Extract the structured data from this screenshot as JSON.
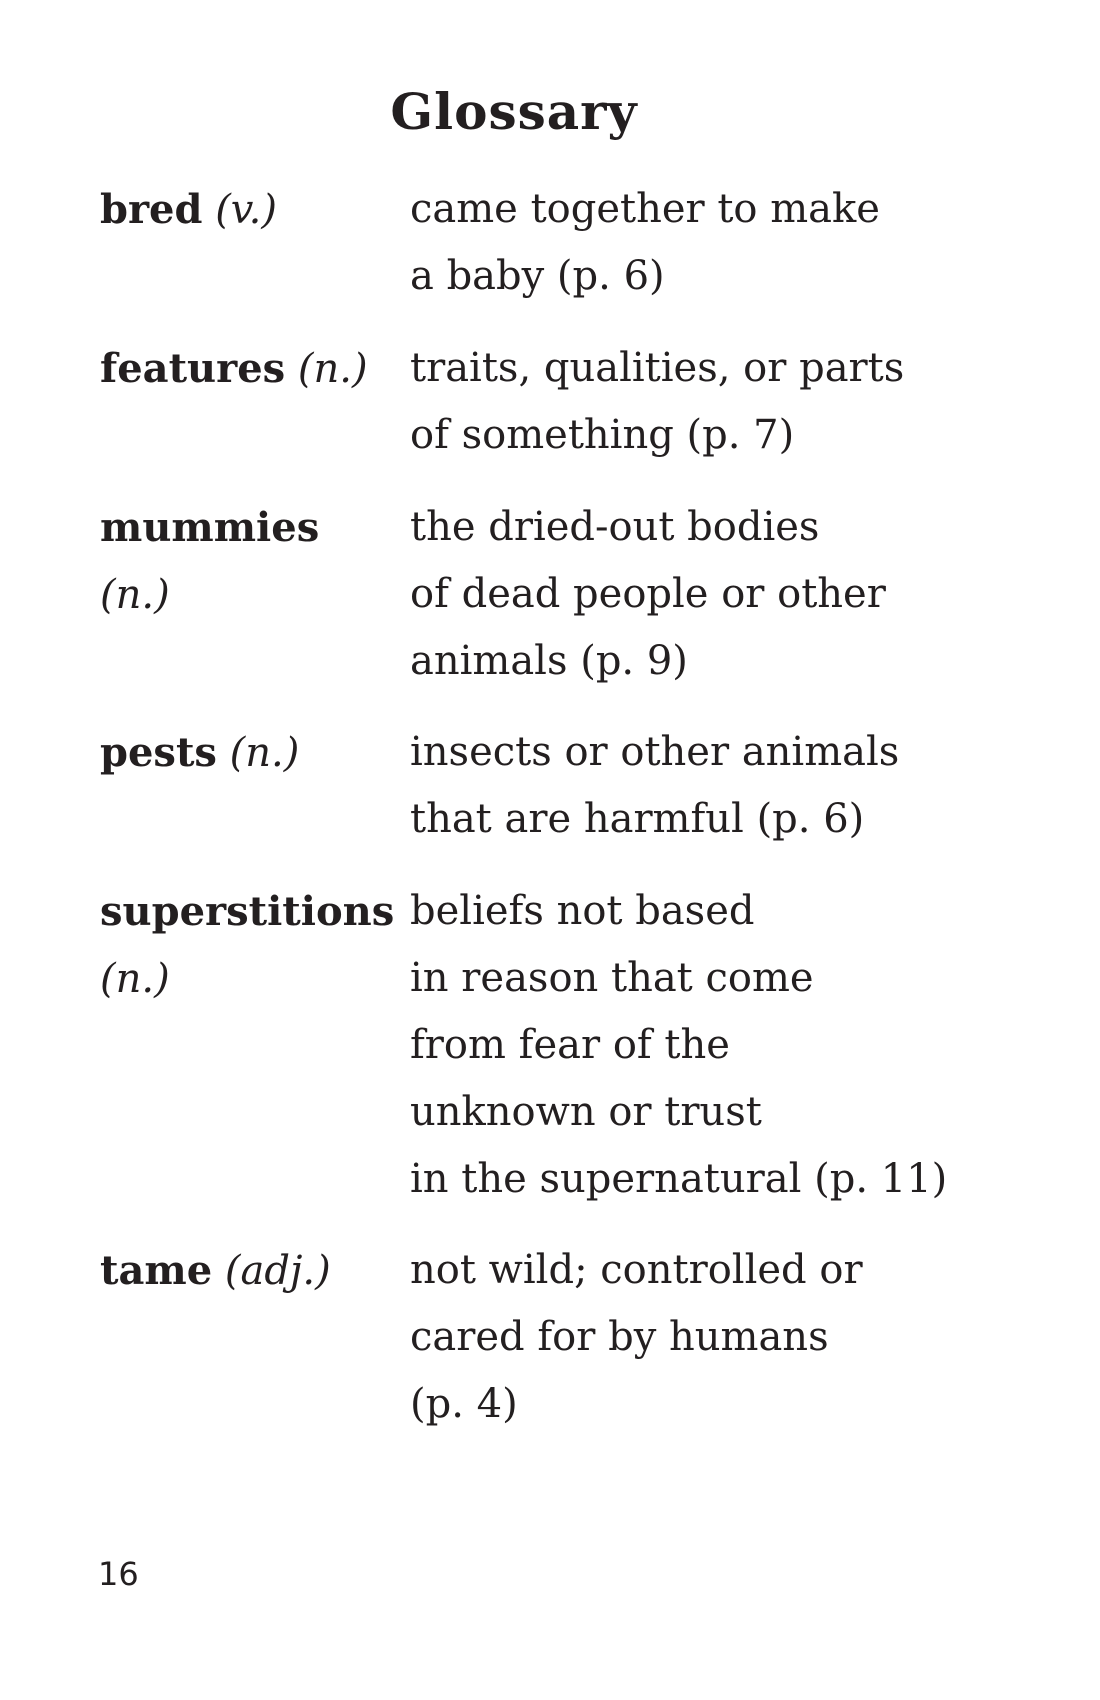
{
  "page": {
    "title": "Glossary",
    "number": "16"
  },
  "glossary": [
    {
      "term": "bred",
      "part_of_speech": "(v.)",
      "definition_lines": [
        "came together to make",
        "a baby (p. 6)"
      ]
    },
    {
      "term": "features",
      "part_of_speech": "(n.)",
      "definition_lines": [
        "traits, qualities, or parts",
        "of something (p. 7)"
      ]
    },
    {
      "term": "mummies",
      "part_of_speech": "(n.)",
      "definition_lines": [
        "the dried-out bodies",
        "of dead people or other",
        "animals (p. 9)"
      ]
    },
    {
      "term": "pests",
      "part_of_speech": "(n.)",
      "definition_lines": [
        "insects or other animals",
        "that are harmful (p. 6)"
      ]
    },
    {
      "term": "superstitions",
      "part_of_speech": "(n.)",
      "definition_lines": [
        "beliefs not based",
        "in reason that come",
        "from fear of the",
        "unknown or trust",
        "in the supernatural (p. 11)"
      ]
    },
    {
      "term": "tame",
      "part_of_speech": "(adj.)",
      "definition_lines": [
        "not wild; controlled or",
        "cared for by humans",
        "(p. 4)"
      ]
    }
  ]
}
